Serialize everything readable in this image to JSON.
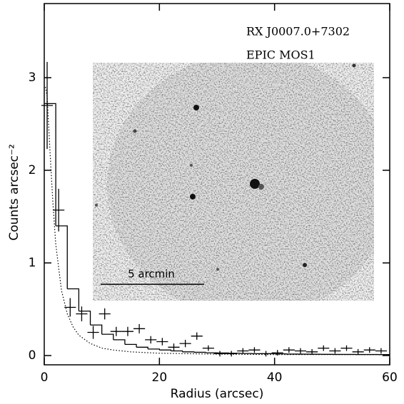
{
  "chart_data": {
    "type": "errorbar",
    "xlabel": "Radius (arcsec)",
    "ylabel": "Counts arcsec⁻²",
    "annotations": [
      "RX J0007.0+7302",
      "EPIC MOS1"
    ],
    "inset_label": "5 arcmin",
    "xlim": [
      0,
      60
    ],
    "ylim": [
      -0.1,
      3.8
    ],
    "xticks": [
      0,
      20,
      40,
      60
    ],
    "yticks": [
      0,
      1,
      2,
      3
    ],
    "color": "#000000",
    "points": {
      "x": [
        0.5,
        2.5,
        4.5,
        6.5,
        8.5,
        10.5,
        12.5,
        14.5,
        16.5,
        18.5,
        20.5,
        22.5,
        24.5,
        26.5,
        28.5,
        30.5,
        32.5,
        34.5,
        36.5,
        38.5,
        40.5,
        42.5,
        44.5,
        46.5,
        48.5,
        50.5,
        52.5,
        54.5,
        56.5,
        58.5
      ],
      "values": [
        2.7,
        1.57,
        0.52,
        0.45,
        0.25,
        0.45,
        0.26,
        0.26,
        0.29,
        0.17,
        0.15,
        0.09,
        0.13,
        0.21,
        0.08,
        0.02,
        0.02,
        0.05,
        0.06,
        0.02,
        0.03,
        0.06,
        0.05,
        0.04,
        0.08,
        0.05,
        0.08,
        0.04,
        0.06,
        0.05
      ],
      "yerr": [
        0.47,
        0.23,
        0.1,
        0.08,
        0.07,
        0.06,
        0.05,
        0.05,
        0.05,
        0.04,
        0.04,
        0.04,
        0.04,
        0.04,
        0.03,
        0.03,
        0.03,
        0.03,
        0.03,
        0.03,
        0.03,
        0.03,
        0.03,
        0.03,
        0.03,
        0.03,
        0.03,
        0.03,
        0.03,
        0.03
      ],
      "xerr": 1
    },
    "histogram": {
      "bins": [
        0,
        2,
        4,
        6,
        8,
        10,
        12,
        14,
        16,
        18,
        20,
        22,
        24,
        26,
        28,
        30,
        32,
        34,
        36,
        38,
        40,
        42,
        44,
        46,
        48,
        50,
        52,
        54,
        56,
        58,
        60
      ],
      "counts": [
        2.72,
        1.4,
        0.72,
        0.48,
        0.33,
        0.23,
        0.17,
        0.12,
        0.09,
        0.07,
        0.06,
        0.05,
        0.04,
        0.035,
        0.03,
        0.028,
        0.025,
        0.022,
        0.02,
        0.02,
        0.018,
        0.016,
        0.015,
        0.014,
        0.013,
        0.012,
        0.012,
        0.011,
        0.011,
        0.01
      ]
    },
    "model": {
      "x": [
        0.2,
        0.5,
        1,
        1.5,
        2,
        3,
        4,
        5,
        6,
        8,
        10,
        12,
        15,
        20,
        25,
        30,
        40,
        50,
        60
      ],
      "values": [
        2.9,
        2.8,
        2.2,
        1.65,
        1.2,
        0.7,
        0.45,
        0.31,
        0.22,
        0.13,
        0.08,
        0.06,
        0.04,
        0.025,
        0.02,
        0.015,
        0.01,
        0.01,
        0.01
      ]
    }
  }
}
